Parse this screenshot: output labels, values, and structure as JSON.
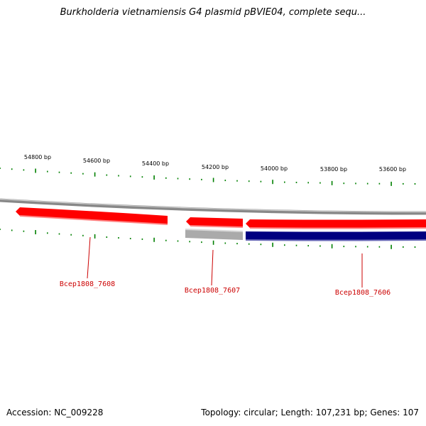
{
  "title": "Burkholderia vietnamiensis G4 plasmid pBVIE04, complete sequ...",
  "footer": {
    "accession": "Accession: NC_009228",
    "summary": "Topology: circular; Length: 107,231 bp; Genes: 107"
  },
  "ruler": {
    "labels": [
      "54800 bp",
      "54600 bp",
      "54400 bp",
      "54200 bp",
      "54000 bp",
      "53800 bp",
      "53600 bp"
    ]
  },
  "genes": [
    {
      "name": "Bcep1808_7608"
    },
    {
      "name": "Bcep1808_7607"
    },
    {
      "name": "Bcep1808_7606"
    }
  ],
  "colors": {
    "backbone": "#888888",
    "gene_forward": "#ff0000",
    "gene_reverse_gray": "#aaaaaa",
    "gene_reverse_navy": "#000080",
    "tick": "#008000",
    "label": "#cc0000"
  }
}
